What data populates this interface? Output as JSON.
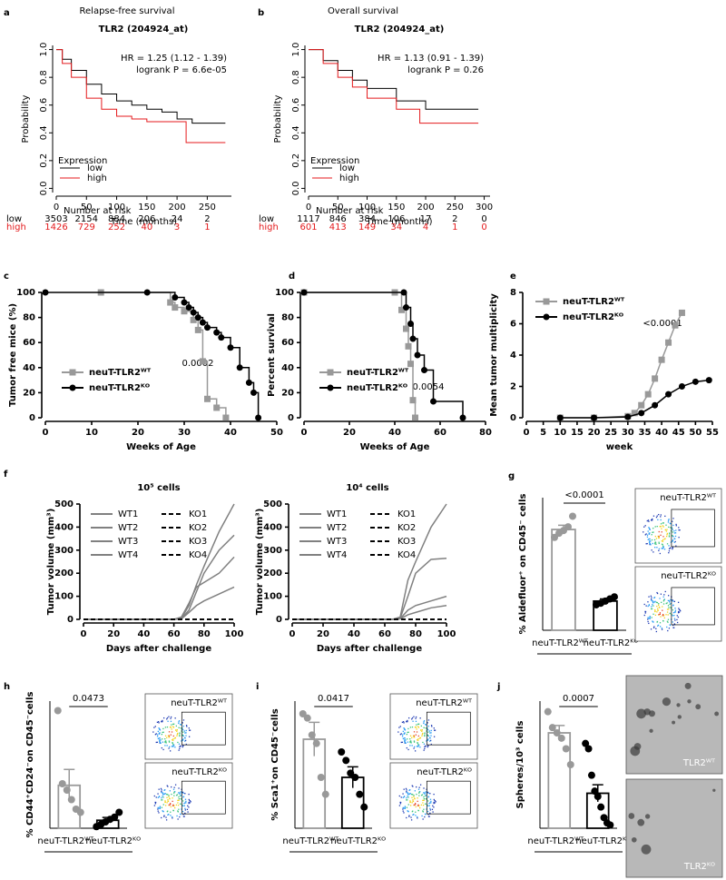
{
  "chart_data": [
    {
      "panel": "a",
      "type": "line",
      "step": true,
      "heading": "Relapse-free survival",
      "title": "TLR2 (204924_at)",
      "annotations": [
        "HR = 1.25 (1.12 - 1.39)",
        "logrank P = 6.6e-05"
      ],
      "x_label": "Time (months)",
      "y_label": "Probability",
      "legend_title": "Expression",
      "legend": "lower left",
      "series": [
        {
          "name": "low",
          "color": "#000000",
          "x": [
            0,
            10,
            25,
            50,
            75,
            100,
            125,
            150,
            175,
            200,
            225,
            250,
            280
          ],
          "values": [
            1,
            0.93,
            0.85,
            0.75,
            0.68,
            0.63,
            0.6,
            0.57,
            0.55,
            0.5,
            0.47,
            0.47,
            0.47
          ]
        },
        {
          "name": "high",
          "color": "#e41a1c",
          "x": [
            0,
            10,
            25,
            50,
            75,
            100,
            125,
            150,
            175,
            200,
            215,
            280
          ],
          "values": [
            1,
            0.9,
            0.8,
            0.65,
            0.57,
            0.52,
            0.5,
            0.48,
            0.48,
            0.48,
            0.33,
            0.33
          ]
        }
      ],
      "xlim": [
        0,
        290
      ],
      "ylim": [
        -0.03,
        1.03
      ],
      "xticks": [
        0,
        50,
        100,
        150,
        200,
        250
      ],
      "yticks": [
        {
          "value": 0,
          "label": "0.0"
        },
        0.2,
        0.4,
        0.6,
        0.8,
        {
          "value": 1,
          "label": "1.0"
        }
      ],
      "risk_table": {
        "title": "Number at risk",
        "rows": [
          [
            3503,
            2154,
            884,
            206,
            24,
            2
          ],
          [
            1426,
            729,
            252,
            40,
            3,
            1
          ]
        ]
      }
    },
    {
      "panel": "b",
      "type": "line",
      "step": true,
      "heading": "Overall survival",
      "title": "TLR2 (204924_at)",
      "annotations": [
        "HR = 1.13 (0.91 - 1.39)",
        "logrank P = 0.26"
      ],
      "x_label": "Time (months)",
      "y_label": "Probability",
      "legend_title": "Expression",
      "legend": "lower left",
      "series": [
        {
          "name": "low",
          "color": "#000000",
          "x": [
            0,
            25,
            50,
            75,
            100,
            150,
            200,
            250,
            290
          ],
          "values": [
            1,
            0.92,
            0.85,
            0.78,
            0.72,
            0.63,
            0.57,
            0.57,
            0.57
          ]
        },
        {
          "name": "high",
          "color": "#e41a1c",
          "x": [
            0,
            25,
            50,
            75,
            100,
            150,
            190,
            200,
            290
          ],
          "values": [
            1,
            0.9,
            0.8,
            0.73,
            0.65,
            0.57,
            0.47,
            0.47,
            0.47
          ]
        }
      ],
      "xlim": [
        0,
        310
      ],
      "ylim": [
        -0.03,
        1.03
      ],
      "xticks": [
        0,
        50,
        100,
        150,
        200,
        250,
        300
      ],
      "yticks": [
        {
          "value": 0,
          "label": "0.0"
        },
        0.2,
        0.4,
        0.6,
        0.8,
        {
          "value": 1,
          "label": "1.0"
        }
      ],
      "risk_table": {
        "title": "Number at risk",
        "rows": [
          [
            1117,
            846,
            384,
            106,
            17,
            2,
            0
          ],
          [
            601,
            413,
            149,
            34,
            4,
            1,
            0
          ]
        ]
      }
    },
    {
      "panel": "c",
      "type": "line",
      "step": true,
      "annotations": [
        "0.0002"
      ],
      "x_label": "Weeks of Age",
      "y_label": "Tumor free mice (%)",
      "legend": "lower left",
      "series": [
        {
          "name": "neuT-TLR2ᵂᵀ",
          "color": "#999999",
          "marker": "square",
          "x": [
            12,
            27,
            28,
            30,
            32,
            33,
            34,
            35,
            37,
            39
          ],
          "values": [
            100,
            92,
            88,
            85,
            78,
            70,
            45,
            15,
            8,
            0
          ]
        },
        {
          "name": "neuT-TLR2ᴷᴼ",
          "color": "#000000",
          "marker": "circle",
          "x": [
            0,
            22,
            28,
            30,
            31,
            32,
            33,
            34,
            35,
            37,
            38,
            40,
            42,
            44,
            45,
            46
          ],
          "values": [
            100,
            100,
            96,
            92,
            88,
            84,
            80,
            76,
            72,
            68,
            64,
            56,
            40,
            28,
            20,
            0
          ]
        }
      ],
      "xlim": [
        0,
        50
      ],
      "ylim": [
        0,
        100
      ],
      "xticks": [
        0,
        10,
        20,
        30,
        40,
        50
      ],
      "yticks": [
        0,
        20,
        40,
        60,
        80,
        100
      ]
    },
    {
      "panel": "d",
      "type": "line",
      "step": true,
      "annotations": [
        "0.0054"
      ],
      "x_label": "Weeks of Age",
      "y_label": "Percent survival",
      "legend": "lower left",
      "series": [
        {
          "name": "neuT-TLR2ᵂᵀ",
          "color": "#999999",
          "marker": "square",
          "x": [
            0,
            40,
            43,
            45,
            46,
            47,
            48,
            49
          ],
          "values": [
            100,
            100,
            86,
            71,
            57,
            43,
            14,
            0
          ]
        },
        {
          "name": "neuT-TLR2ᴷᴼ",
          "color": "#000000",
          "marker": "circle",
          "x": [
            0,
            44,
            45,
            47,
            48,
            50,
            53,
            57,
            70
          ],
          "values": [
            100,
            100,
            88,
            75,
            63,
            50,
            38,
            13,
            0
          ]
        }
      ],
      "xlim": [
        0,
        80
      ],
      "ylim": [
        0,
        100
      ],
      "xticks": [
        0,
        20,
        40,
        60,
        80
      ],
      "yticks": [
        0,
        20,
        40,
        60,
        80,
        100
      ]
    },
    {
      "panel": "e",
      "type": "line",
      "annotations": [
        "<0.0001"
      ],
      "x_label": "week",
      "y_label": "Mean tumor multiplicity",
      "legend": "upper left",
      "series": [
        {
          "name": "neuT-TLR2ᵂᵀ",
          "color": "#999999",
          "marker": "square",
          "x": [
            10,
            20,
            30,
            32,
            34,
            36,
            38,
            40,
            42,
            44,
            46
          ],
          "values": [
            0,
            0,
            0.1,
            0.3,
            0.8,
            1.5,
            2.5,
            3.7,
            4.8,
            5.9,
            6.7
          ]
        },
        {
          "name": "neuT-TLR2ᴷᴼ",
          "color": "#000000",
          "marker": "circle",
          "x": [
            10,
            20,
            30,
            34,
            38,
            42,
            46,
            50,
            54
          ],
          "values": [
            0,
            0,
            0.05,
            0.3,
            0.8,
            1.5,
            2.0,
            2.3,
            2.4
          ]
        }
      ],
      "xlim": [
        0,
        55
      ],
      "ylim": [
        0,
        8
      ],
      "xticks": [
        0,
        5,
        10,
        15,
        20,
        25,
        30,
        35,
        40,
        45,
        50,
        55
      ],
      "yticks": [
        0,
        2,
        4,
        6,
        8
      ]
    },
    {
      "panel": "f",
      "type": "line",
      "heading": "10⁵ cells",
      "x_label": "Days after challenge",
      "y_label": "Tumor volume (mm³)",
      "legend": "upper left",
      "x": [
        0,
        20,
        40,
        60,
        65,
        70,
        75,
        80,
        90,
        100
      ],
      "series": [
        {
          "name": "WT1",
          "color": "#808080",
          "values": [
            0,
            0,
            0,
            0,
            5,
            60,
            150,
            230,
            380,
            500
          ]
        },
        {
          "name": "WT2",
          "color": "#808080",
          "values": [
            0,
            0,
            0,
            0,
            3,
            40,
            120,
            200,
            300,
            365
          ]
        },
        {
          "name": "WT3",
          "color": "#808080",
          "values": [
            0,
            0,
            0,
            0,
            10,
            70,
            140,
            160,
            200,
            270
          ]
        },
        {
          "name": "WT4",
          "color": "#808080",
          "values": [
            0,
            0,
            0,
            0,
            2,
            30,
            60,
            80,
            110,
            140
          ]
        },
        {
          "name": "KO1",
          "color": "#000000",
          "dashed": true,
          "values": [
            0,
            0,
            0,
            0,
            0,
            0,
            0,
            0,
            0,
            0
          ]
        },
        {
          "name": "KO2",
          "color": "#000000",
          "dashed": true,
          "values": [
            0,
            0,
            0,
            0,
            0,
            0,
            0,
            0,
            0,
            0
          ]
        },
        {
          "name": "KO3",
          "color": "#000000",
          "dashed": true,
          "values": [
            0,
            0,
            0,
            0,
            0,
            0,
            0,
            0,
            0,
            0
          ]
        },
        {
          "name": "KO4",
          "color": "#000000",
          "dashed": true,
          "values": [
            0,
            0,
            0,
            0,
            0,
            0,
            0,
            0,
            0,
            0
          ]
        }
      ],
      "xlim": [
        0,
        100
      ],
      "ylim": [
        0,
        500
      ],
      "xticks": [
        0,
        20,
        40,
        60,
        80,
        100
      ],
      "yticks": [
        0,
        100,
        200,
        300,
        400,
        500
      ]
    },
    {
      "type": "line",
      "heading": "10⁴ cells",
      "x_label": "Days after challenge",
      "y_label": "Tumor volume (mm³)",
      "legend": "upper left",
      "x": [
        0,
        20,
        40,
        60,
        65,
        70,
        75,
        80,
        90,
        100
      ],
      "series": [
        {
          "name": "WT1",
          "color": "#808080",
          "values": [
            0,
            0,
            0,
            0,
            0,
            10,
            170,
            250,
            400,
            500
          ]
        },
        {
          "name": "WT2",
          "color": "#808080",
          "values": [
            0,
            0,
            0,
            0,
            0,
            5,
            100,
            200,
            260,
            265
          ]
        },
        {
          "name": "WT3",
          "color": "#808080",
          "values": [
            0,
            0,
            0,
            0,
            0,
            3,
            40,
            60,
            80,
            100
          ]
        },
        {
          "name": "WT4",
          "color": "#808080",
          "values": [
            0,
            0,
            0,
            0,
            0,
            2,
            20,
            30,
            50,
            60
          ]
        },
        {
          "name": "KO1",
          "color": "#000000",
          "dashed": true,
          "values": [
            0,
            0,
            0,
            0,
            0,
            0,
            0,
            0,
            0,
            0
          ]
        },
        {
          "name": "KO2",
          "color": "#000000",
          "dashed": true,
          "values": [
            0,
            0,
            0,
            0,
            0,
            0,
            0,
            0,
            0,
            0
          ]
        },
        {
          "name": "KO3",
          "color": "#000000",
          "dashed": true,
          "values": [
            0,
            0,
            0,
            0,
            0,
            0,
            0,
            0,
            0,
            0
          ]
        },
        {
          "name": "KO4",
          "color": "#000000",
          "dashed": true,
          "values": [
            0,
            0,
            0,
            0,
            0,
            0,
            0,
            0,
            0,
            0
          ]
        }
      ],
      "xlim": [
        0,
        100
      ],
      "ylim": [
        0,
        500
      ],
      "xticks": [
        0,
        20,
        40,
        60,
        80,
        100
      ],
      "yticks": [
        0,
        100,
        200,
        300,
        400,
        500
      ]
    },
    {
      "panel": "g",
      "type": "bar",
      "annotations": [
        "<0.0001"
      ],
      "y_label": "% Aldefluor⁺ on CD45⁻ cells",
      "categories": [
        "neuT-TLR2ᵂᵀ",
        "neuT-TLR2ᴷᴼ"
      ],
      "colors": [
        "#999999",
        "#000000"
      ],
      "values": [
        19,
        5.5
      ],
      "errors": [
        0.8,
        0.4
      ],
      "points": [
        [
          17.5,
          18.3,
          18.8,
          19.5,
          21.5
        ],
        [
          4.8,
          5.1,
          5.5,
          5.9,
          6.3
        ]
      ],
      "ylim": [
        0,
        25
      ],
      "image_kind": "flow",
      "image_labels": [
        "neuT-TLR2ᵂᵀ",
        "neuT-TLR2ᴷᴼ"
      ]
    },
    {
      "panel": "h",
      "type": "bar",
      "annotations": [
        "0.0473"
      ],
      "y_label": "% CD44⁺CD24⁻on CD45⁻cells",
      "categories": [
        "neuT-TLR2ᵂᵀ",
        "neuT-TLR2ᴷᴼ"
      ],
      "colors": [
        "#999999",
        "#000000"
      ],
      "values": [
        13.5,
        2.5
      ],
      "errors": [
        5,
        0.9
      ],
      "points": [
        [
          37,
          14,
          12,
          9,
          6,
          5
        ],
        [
          0.5,
          1.2,
          2,
          2.8,
          3.5,
          5
        ]
      ],
      "ylim": [
        0,
        40
      ],
      "image_kind": "flow",
      "image_labels": [
        "neuT-TLR2ᵂᵀ",
        "neuT-TLR2ᴷᴼ"
      ]
    },
    {
      "panel": "i",
      "type": "bar",
      "annotations": [
        "0.0417"
      ],
      "y_label": "% Sca1⁺on CD45⁻cells",
      "categories": [
        "neuT-TLR2ᵂᵀ",
        "neuT-TLR2ᴷᴼ"
      ],
      "colors": [
        "#999999",
        "#000000"
      ],
      "values": [
        21,
        12
      ],
      "errors": [
        4,
        2.5
      ],
      "points": [
        [
          27,
          26,
          22,
          20,
          12,
          8
        ],
        [
          18,
          16,
          13,
          12,
          8,
          5
        ]
      ],
      "ylim": [
        0,
        30
      ],
      "image_kind": "flow",
      "image_labels": [
        "neuT-TLR2ᵂᵀ",
        "neuT-TLR2ᴷᴼ"
      ]
    },
    {
      "panel": "j",
      "type": "bar",
      "annotations": [
        "0.0007"
      ],
      "y_label": "Spheres/10³ cells",
      "categories": [
        "neuT-TLR2ᵂᵀ",
        "neuT-TLR2ᴷᴼ"
      ],
      "colors": [
        "#999999",
        "#000000"
      ],
      "values": [
        9,
        3.3
      ],
      "errors": [
        0.7,
        0.8
      ],
      "points": [
        [
          11,
          9.5,
          9,
          8.5,
          7.5,
          6
        ],
        [
          8,
          7.5,
          5,
          3.5,
          3,
          2,
          1,
          0.5,
          0.3
        ]
      ],
      "ylim": [
        0,
        12
      ],
      "image_kind": "photo",
      "image_labels": [
        "TLR2ᵂᵀ",
        "TLR2ᴷᴼ"
      ]
    }
  ]
}
